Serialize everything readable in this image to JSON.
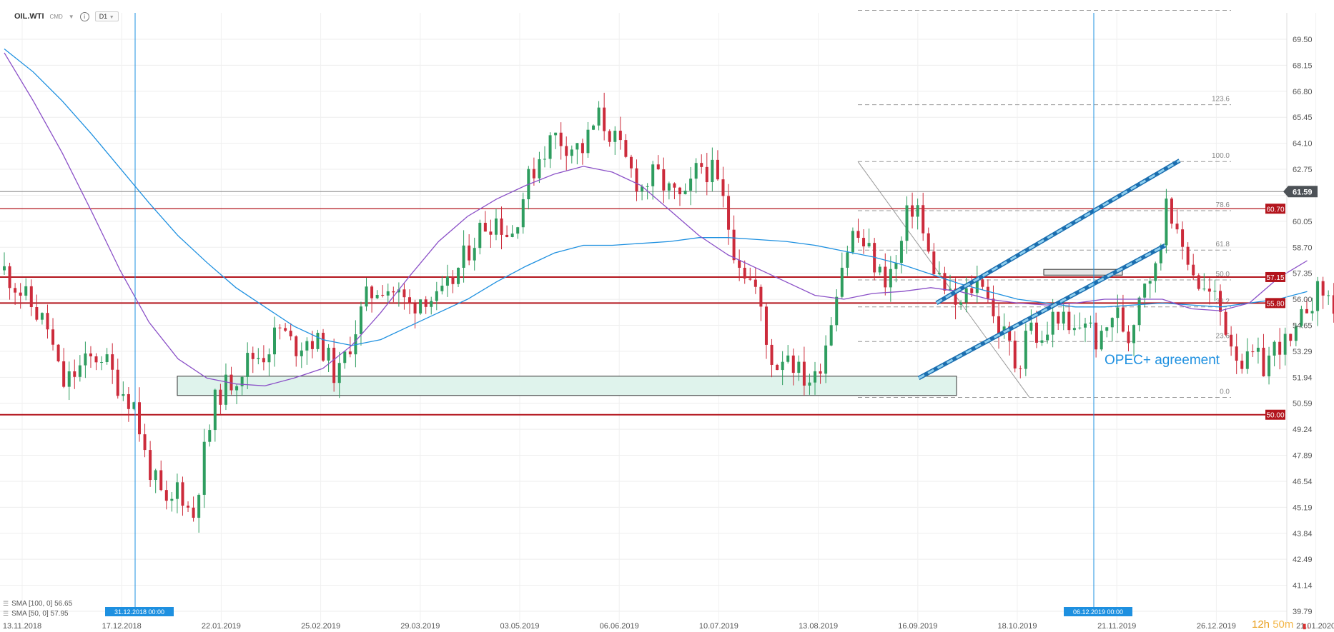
{
  "header": {
    "symbol": "OIL.WTI",
    "category": "CMD",
    "timeframe": "D1"
  },
  "indicators": [
    {
      "label": "SMA [100, 0] 56.65",
      "color": "#1e90e0"
    },
    {
      "label": "SMA [50, 0] 57.95",
      "color": "#8a4fc7"
    }
  ],
  "timer": {
    "hours": "12h",
    "minutes": "50m"
  },
  "colors": {
    "up_candle": "#2e9d5f",
    "down_candle": "#cc2b3b",
    "level_line": "#b3141c",
    "vertical_marker": "#1e90e0",
    "annotation": "#1e90e0",
    "zone_fill": "#dff3ec",
    "price_label_bg": "#4d5257"
  },
  "chart_data": {
    "type": "candlestick",
    "instrument": "OIL.WTI",
    "timeframe": "D1",
    "ylim": [
      39.79,
      71.3
    ],
    "y_ticks": [
      "69.50",
      "68.15",
      "66.80",
      "65.45",
      "64.10",
      "62.75",
      "61.59",
      "60.05",
      "58.70",
      "57.35",
      "56.00",
      "54.65",
      "53.29",
      "51.94",
      "50.59",
      "49.24",
      "47.89",
      "46.54",
      "45.19",
      "43.84",
      "42.49",
      "41.14",
      "39.79"
    ],
    "x_ticks": [
      "13.11.2018",
      "17.12.2018",
      "22.01.2019",
      "25.02.2019",
      "29.03.2019",
      "03.05.2019",
      "06.06.2019",
      "10.07.2019",
      "13.08.2019",
      "16.09.2019",
      "18.10.2019",
      "21.11.2019",
      "26.12.2019",
      "21.01.2020"
    ],
    "current_price": "61.59",
    "levels": [
      {
        "label": "60.70",
        "value": 60.7
      },
      {
        "label": "57.15",
        "value": 57.15
      },
      {
        "label": "55.80",
        "value": 55.8
      },
      {
        "label": "50.00",
        "value": 50.0
      }
    ],
    "fibonacci": [
      {
        "label": "123.6",
        "value": 66.1
      },
      {
        "label": "100.0",
        "value": 63.15
      },
      {
        "label": "78.6",
        "value": 60.6
      },
      {
        "label": "61.8",
        "value": 58.55
      },
      {
        "label": "50.0",
        "value": 57.0
      },
      {
        "label": "38.2",
        "value": 55.6
      },
      {
        "label": "23.6",
        "value": 53.8
      },
      {
        "label": "0.0",
        "value": 50.9
      }
    ],
    "fib_top_extra": 71.0,
    "markers": [
      {
        "label": "31.12.2018 00:00"
      },
      {
        "label": "06.12.2019 00:00"
      }
    ],
    "annotation": "OPEC+ agreement",
    "sma100": [
      [
        0,
        69.0
      ],
      [
        30,
        67.8
      ],
      [
        60,
        66.3
      ],
      [
        90,
        64.6
      ],
      [
        120,
        62.8
      ],
      [
        150,
        61.0
      ],
      [
        180,
        59.3
      ],
      [
        210,
        57.9
      ],
      [
        240,
        56.6
      ],
      [
        270,
        55.6
      ],
      [
        300,
        54.6
      ],
      [
        330,
        53.9
      ],
      [
        360,
        53.6
      ],
      [
        390,
        53.9
      ],
      [
        420,
        54.6
      ],
      [
        450,
        55.3
      ],
      [
        480,
        56.0
      ],
      [
        510,
        56.9
      ],
      [
        540,
        57.7
      ],
      [
        570,
        58.4
      ],
      [
        600,
        58.8
      ],
      [
        630,
        58.8
      ],
      [
        660,
        58.9
      ],
      [
        690,
        59.0
      ],
      [
        720,
        59.2
      ],
      [
        750,
        59.2
      ],
      [
        780,
        59.1
      ],
      [
        810,
        59.0
      ],
      [
        840,
        58.8
      ],
      [
        870,
        58.5
      ],
      [
        900,
        58.2
      ],
      [
        930,
        57.8
      ],
      [
        960,
        57.3
      ],
      [
        990,
        56.8
      ],
      [
        1020,
        56.4
      ],
      [
        1050,
        56.0
      ],
      [
        1080,
        55.8
      ],
      [
        1110,
        55.6
      ],
      [
        1140,
        55.6
      ],
      [
        1170,
        55.7
      ],
      [
        1200,
        55.8
      ],
      [
        1230,
        55.7
      ],
      [
        1260,
        55.6
      ],
      [
        1290,
        55.8
      ],
      [
        1320,
        56.0
      ],
      [
        1350,
        56.4
      ]
    ],
    "sma50": [
      [
        0,
        68.8
      ],
      [
        30,
        66.3
      ],
      [
        60,
        63.6
      ],
      [
        90,
        60.6
      ],
      [
        120,
        57.5
      ],
      [
        150,
        54.8
      ],
      [
        180,
        52.9
      ],
      [
        210,
        51.9
      ],
      [
        240,
        51.6
      ],
      [
        270,
        51.5
      ],
      [
        300,
        51.9
      ],
      [
        330,
        52.4
      ],
      [
        360,
        53.6
      ],
      [
        390,
        55.3
      ],
      [
        420,
        57.2
      ],
      [
        450,
        59.0
      ],
      [
        480,
        60.3
      ],
      [
        510,
        61.2
      ],
      [
        540,
        61.9
      ],
      [
        570,
        62.5
      ],
      [
        600,
        62.9
      ],
      [
        630,
        62.6
      ],
      [
        660,
        61.9
      ],
      [
        690,
        60.6
      ],
      [
        720,
        59.3
      ],
      [
        750,
        58.3
      ],
      [
        780,
        57.6
      ],
      [
        810,
        56.9
      ],
      [
        840,
        56.2
      ],
      [
        870,
        56.0
      ],
      [
        900,
        56.3
      ],
      [
        930,
        56.4
      ],
      [
        960,
        56.6
      ],
      [
        990,
        56.4
      ],
      [
        1020,
        56.0
      ],
      [
        1050,
        55.8
      ],
      [
        1080,
        55.7
      ],
      [
        1110,
        55.8
      ],
      [
        1140,
        56.0
      ],
      [
        1170,
        56.0
      ],
      [
        1200,
        56.0
      ],
      [
        1230,
        55.5
      ],
      [
        1260,
        55.4
      ],
      [
        1290,
        55.8
      ],
      [
        1320,
        57.1
      ],
      [
        1350,
        58.0
      ]
    ]
  }
}
